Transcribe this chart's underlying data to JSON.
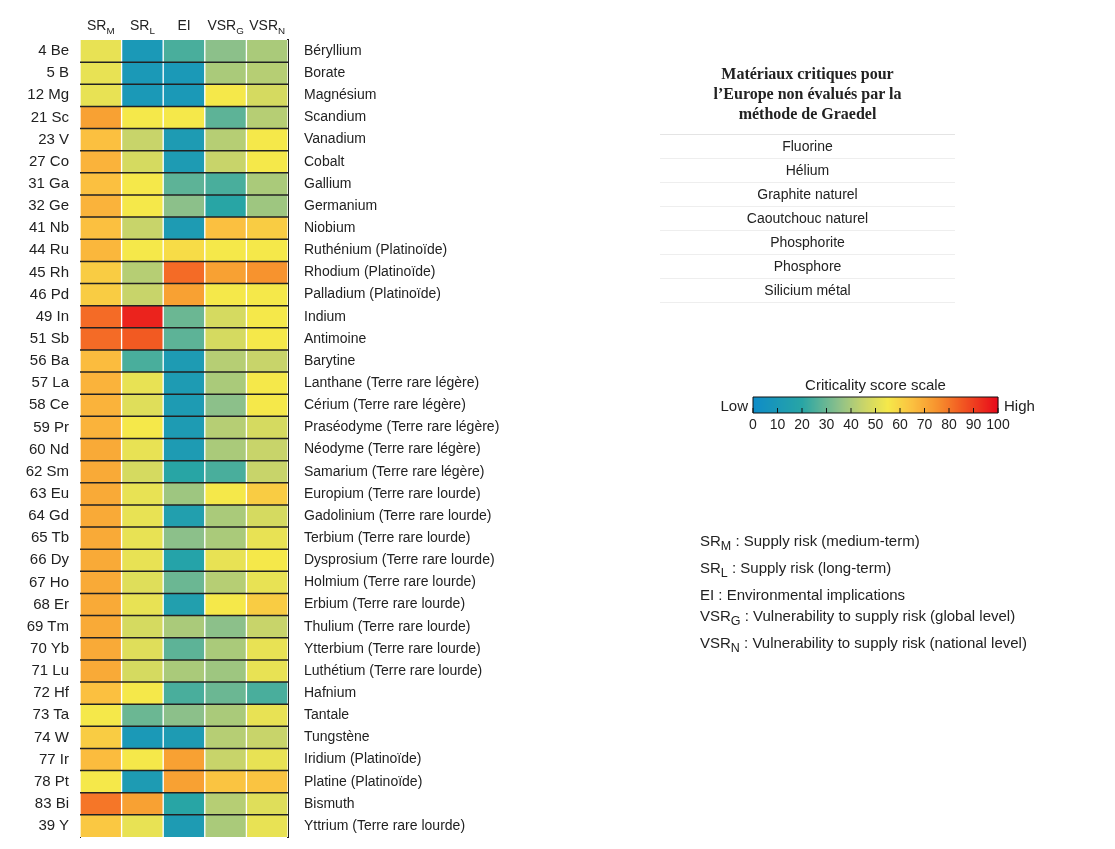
{
  "chart_data": {
    "type": "heatmap",
    "categories": [
      "SR$_{M}$",
      "SR$_{L}$",
      "EI",
      "VSR$_{G}$",
      "VSR$_{N}$"
    ],
    "y_categories": [
      "4 Be",
      "5 B",
      "12 Mg",
      "21 Sc",
      "23 V",
      "27 Co",
      "31 Ga",
      "32 Ge",
      "41 Nb",
      "44 Ru",
      "45 Rh",
      "46 Pd",
      "49 In",
      "51 Sb",
      "56 Ba",
      "57 La",
      "58 Ce",
      "59 Pr",
      "60 Nd",
      "62 Sm",
      "63 Eu",
      "64 Gd",
      "65 Tb",
      "66 Dy",
      "67 Ho",
      "68 Er",
      "69 Tm",
      "70 Yb",
      "71 Lu",
      "72 Hf",
      "73 Ta",
      "74 W",
      "77 Ir",
      "78 Pt",
      "83 Bi",
      "39 Y"
    ],
    "y2_categories": [
      "Béryllium",
      "Borate",
      "Magnésium",
      "Scandium",
      "Vanadium",
      "Cobalt",
      "Gallium",
      "Germanium",
      "Niobium",
      "Ruthénium (Platinoïde)",
      "Rhodium (Platinoïde)",
      "Palladium (Platinoïde)",
      "Indium",
      "Antimoine",
      "Barytine",
      "Lanthane (Terre rare légère)",
      "Cérium (Terre rare légère)",
      "Praséodyme (Terre rare légère)",
      "Néodyme (Terre rare légère)",
      "Samarium (Terre rare légère)",
      "Europium (Terre rare lourde)",
      "Gadolinium (Terre rare lourde)",
      "Terbium (Terre rare lourde)",
      "Dysprosium (Terre rare lourde)",
      "Holmium (Terre rare lourde)",
      "Erbium (Terre rare lourde)",
      "Thulium (Terre rare lourde)",
      "Ytterbium (Terre rare lourde)",
      "Luthétium (Terre rare lourde)",
      "Hafnium",
      "Tantale",
      "Tungstène",
      "Iridium (Platinoïde)",
      "Platine (Platinoïde)",
      "Bismuth",
      "Yttrium (Terre rare lourde)"
    ],
    "cells": [
      [
        52,
        10,
        25,
        35,
        40
      ],
      [
        52,
        10,
        10,
        40,
        42
      ],
      [
        52,
        10,
        10,
        55,
        48
      ],
      [
        72,
        55,
        55,
        28,
        42
      ],
      [
        65,
        45,
        12,
        42,
        55
      ],
      [
        68,
        48,
        12,
        45,
        55
      ],
      [
        65,
        55,
        28,
        25,
        40
      ],
      [
        68,
        55,
        35,
        20,
        38
      ],
      [
        65,
        45,
        12,
        65,
        62
      ],
      [
        67,
        55,
        58,
        55,
        55
      ],
      [
        62,
        42,
        82,
        72,
        75
      ],
      [
        62,
        45,
        72,
        55,
        55
      ],
      [
        82,
        95,
        30,
        48,
        55
      ],
      [
        82,
        85,
        28,
        48,
        55
      ],
      [
        66,
        25,
        12,
        42,
        45
      ],
      [
        68,
        52,
        12,
        40,
        55
      ],
      [
        68,
        50,
        12,
        35,
        55
      ],
      [
        68,
        55,
        12,
        42,
        48
      ],
      [
        70,
        52,
        12,
        40,
        45
      ],
      [
        70,
        48,
        20,
        25,
        45
      ],
      [
        70,
        52,
        38,
        55,
        62
      ],
      [
        70,
        52,
        15,
        40,
        48
      ],
      [
        70,
        52,
        35,
        40,
        52
      ],
      [
        70,
        52,
        18,
        52,
        55
      ],
      [
        70,
        50,
        30,
        42,
        52
      ],
      [
        70,
        52,
        15,
        55,
        62
      ],
      [
        70,
        48,
        40,
        35,
        45
      ],
      [
        70,
        50,
        28,
        40,
        52
      ],
      [
        70,
        48,
        40,
        38,
        52
      ],
      [
        65,
        55,
        25,
        30,
        25
      ],
      [
        55,
        30,
        35,
        40,
        52
      ],
      [
        62,
        10,
        12,
        42,
        45
      ],
      [
        66,
        55,
        72,
        45,
        52
      ],
      [
        55,
        12,
        72,
        64,
        64
      ],
      [
        80,
        72,
        20,
        42,
        50
      ],
      [
        63,
        52,
        12,
        40,
        52
      ]
    ],
    "clim": [
      0,
      100
    ],
    "cticks": [
      0,
      10,
      20,
      30,
      40,
      50,
      60,
      70,
      80,
      90,
      100
    ],
    "clabel": "Criticality score scale",
    "annotations": [
      "Low",
      "High",
      "Matériaux critiques pour l’Europe non évalués par la méthode de Graedel",
      "Fluorine",
      "Hélium",
      "Graphite naturel",
      "Caoutchouc naturel",
      "Phosphorite",
      "Phosphore",
      "Silicium métal",
      "SR$_{M}$ : Supply risk (medium-term)",
      "SR$_{L}$ : Supply risk (long-term)",
      "EI : Environmental implications",
      "VSR$_{G}$ : Vulnerability to supply risk (global level)",
      "VSR$_{N}$ : Vulnerability to supply risk (national level)"
    ]
  }
}
